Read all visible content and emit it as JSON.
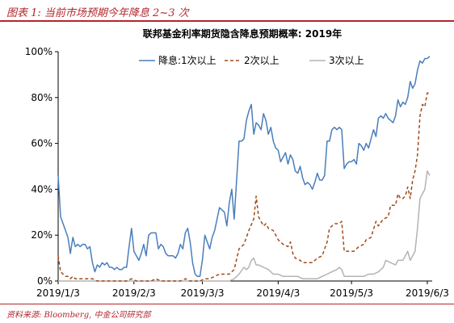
{
  "figure_title": "图表 1:  当前市场预期今年降息 2~3 次",
  "source": "资料来源: Bloomberg, 中金公司研究部",
  "chart_data": {
    "type": "line",
    "title": "联邦基金利率期货隐含降息预期概率: 2019年",
    "xlabel": "",
    "ylabel": "",
    "x_ticks": [
      "2019/1/3",
      "2019/2/3",
      "2019/3/3",
      "2019/4/3",
      "2019/5/3",
      "2019/6/3"
    ],
    "x_tick_days": [
      0,
      31,
      59,
      90,
      120,
      151
    ],
    "x_range_days": [
      0,
      153
    ],
    "y_ticks": [
      "0%",
      "20%",
      "40%",
      "60%",
      "80%",
      "100%"
    ],
    "ylim": [
      0,
      100
    ],
    "grid": false,
    "legend_position": "top",
    "series": [
      {
        "name": "降息:1次以上",
        "color": "#4a7ebb",
        "dash": "solid",
        "points": [
          [
            0,
            46
          ],
          [
            1,
            28
          ],
          [
            2,
            25
          ],
          [
            3,
            22
          ],
          [
            4,
            19
          ],
          [
            5,
            12
          ],
          [
            6,
            19
          ],
          [
            7,
            15
          ],
          [
            8,
            16
          ],
          [
            9,
            15
          ],
          [
            10,
            16
          ],
          [
            11,
            16
          ],
          [
            12,
            14
          ],
          [
            13,
            15
          ],
          [
            14,
            8
          ],
          [
            15,
            4
          ],
          [
            16,
            7
          ],
          [
            17,
            6
          ],
          [
            18,
            8
          ],
          [
            19,
            7
          ],
          [
            20,
            8
          ],
          [
            21,
            6
          ],
          [
            22,
            6
          ],
          [
            23,
            5
          ],
          [
            24,
            6
          ],
          [
            25,
            5
          ],
          [
            26,
            5
          ],
          [
            27,
            6
          ],
          [
            28,
            6
          ],
          [
            29,
            15
          ],
          [
            30,
            23
          ],
          [
            31,
            13
          ],
          [
            32,
            11
          ],
          [
            33,
            9
          ],
          [
            34,
            12
          ],
          [
            35,
            16
          ],
          [
            36,
            11
          ],
          [
            37,
            20
          ],
          [
            38,
            21
          ],
          [
            39,
            21
          ],
          [
            40,
            21
          ],
          [
            41,
            14
          ],
          [
            42,
            16
          ],
          [
            43,
            15
          ],
          [
            44,
            12
          ],
          [
            45,
            11
          ],
          [
            46,
            11
          ],
          [
            47,
            11
          ],
          [
            48,
            10
          ],
          [
            49,
            12
          ],
          [
            50,
            16
          ],
          [
            51,
            14
          ],
          [
            52,
            21
          ],
          [
            53,
            23
          ],
          [
            54,
            17
          ],
          [
            55,
            8
          ],
          [
            56,
            3
          ],
          [
            57,
            2
          ],
          [
            58,
            2
          ],
          [
            59,
            9
          ],
          [
            60,
            20
          ],
          [
            61,
            17
          ],
          [
            62,
            14
          ],
          [
            63,
            19
          ],
          [
            64,
            22
          ],
          [
            65,
            27
          ],
          [
            66,
            32
          ],
          [
            67,
            31
          ],
          [
            68,
            30
          ],
          [
            69,
            24
          ],
          [
            70,
            34
          ],
          [
            71,
            40
          ],
          [
            72,
            27
          ],
          [
            73,
            44
          ],
          [
            74,
            61
          ],
          [
            75,
            61
          ],
          [
            76,
            62
          ],
          [
            77,
            70
          ],
          [
            78,
            74
          ],
          [
            79,
            77
          ],
          [
            80,
            64
          ],
          [
            81,
            69
          ],
          [
            82,
            68
          ],
          [
            83,
            66
          ],
          [
            84,
            73
          ],
          [
            85,
            70
          ],
          [
            86,
            64
          ],
          [
            87,
            67
          ],
          [
            88,
            61
          ],
          [
            89,
            58
          ],
          [
            90,
            57
          ],
          [
            91,
            52
          ],
          [
            92,
            54
          ],
          [
            93,
            56
          ],
          [
            94,
            51
          ],
          [
            95,
            55
          ],
          [
            96,
            53
          ],
          [
            97,
            48
          ],
          [
            98,
            47
          ],
          [
            99,
            50
          ],
          [
            100,
            45
          ],
          [
            101,
            42
          ],
          [
            102,
            43
          ],
          [
            103,
            42
          ],
          [
            104,
            40
          ],
          [
            105,
            43
          ],
          [
            106,
            47
          ],
          [
            107,
            44
          ],
          [
            108,
            44
          ],
          [
            109,
            46
          ],
          [
            110,
            61
          ],
          [
            111,
            61
          ],
          [
            112,
            66
          ],
          [
            113,
            67
          ],
          [
            114,
            66
          ],
          [
            115,
            67
          ],
          [
            116,
            66
          ],
          [
            117,
            49
          ],
          [
            118,
            51
          ],
          [
            119,
            52
          ],
          [
            120,
            52
          ],
          [
            121,
            53
          ],
          [
            122,
            51
          ],
          [
            123,
            60
          ],
          [
            124,
            59
          ],
          [
            125,
            57
          ],
          [
            126,
            60
          ],
          [
            127,
            58
          ],
          [
            128,
            62
          ],
          [
            129,
            66
          ],
          [
            130,
            63
          ],
          [
            131,
            71
          ],
          [
            132,
            72
          ],
          [
            133,
            71
          ],
          [
            134,
            73
          ],
          [
            135,
            71
          ],
          [
            136,
            70
          ],
          [
            137,
            69
          ],
          [
            138,
            72
          ],
          [
            139,
            79
          ],
          [
            140,
            76
          ],
          [
            141,
            78
          ],
          [
            142,
            77
          ],
          [
            143,
            80
          ],
          [
            144,
            87
          ],
          [
            145,
            84
          ],
          [
            146,
            86
          ],
          [
            147,
            92
          ],
          [
            148,
            96
          ],
          [
            149,
            95
          ],
          [
            150,
            97
          ],
          [
            151,
            97
          ],
          [
            152,
            98
          ]
        ]
      },
      {
        "name": "2次以上",
        "color": "#a24a18",
        "dash": "4,3",
        "points": [
          [
            0,
            11
          ],
          [
            1,
            4
          ],
          [
            2,
            3
          ],
          [
            3,
            2
          ],
          [
            4,
            2
          ],
          [
            5,
            1
          ],
          [
            6,
            2
          ],
          [
            7,
            1
          ],
          [
            8,
            1
          ],
          [
            10,
            1
          ],
          [
            12,
            1
          ],
          [
            14,
            1
          ],
          [
            16,
            0
          ],
          [
            18,
            0
          ],
          [
            20,
            0
          ],
          [
            22,
            0
          ],
          [
            24,
            0
          ],
          [
            26,
            0
          ],
          [
            28,
            0
          ],
          [
            30,
            1
          ],
          [
            32,
            0
          ],
          [
            34,
            0
          ],
          [
            36,
            0
          ],
          [
            38,
            0
          ],
          [
            40,
            1
          ],
          [
            42,
            0
          ],
          [
            44,
            0
          ],
          [
            46,
            0
          ],
          [
            48,
            0
          ],
          [
            50,
            0
          ],
          [
            52,
            1
          ],
          [
            54,
            0
          ],
          [
            56,
            0
          ],
          [
            58,
            0
          ],
          [
            60,
            1
          ],
          [
            62,
            1
          ],
          [
            64,
            2
          ],
          [
            66,
            3
          ],
          [
            68,
            3
          ],
          [
            70,
            3
          ],
          [
            72,
            5
          ],
          [
            74,
            14
          ],
          [
            76,
            16
          ],
          [
            78,
            22
          ],
          [
            80,
            27
          ],
          [
            81,
            37
          ],
          [
            82,
            28
          ],
          [
            84,
            24
          ],
          [
            85,
            25
          ],
          [
            86,
            23
          ],
          [
            88,
            22
          ],
          [
            90,
            18
          ],
          [
            92,
            16
          ],
          [
            94,
            15
          ],
          [
            95,
            17
          ],
          [
            96,
            12
          ],
          [
            97,
            10
          ],
          [
            99,
            9
          ],
          [
            100,
            8
          ],
          [
            102,
            8
          ],
          [
            104,
            8
          ],
          [
            106,
            10
          ],
          [
            108,
            11
          ],
          [
            110,
            17
          ],
          [
            111,
            23
          ],
          [
            113,
            25
          ],
          [
            115,
            25
          ],
          [
            116,
            26
          ],
          [
            117,
            13
          ],
          [
            119,
            13
          ],
          [
            121,
            13
          ],
          [
            123,
            15
          ],
          [
            125,
            16
          ],
          [
            126,
            18
          ],
          [
            128,
            19
          ],
          [
            130,
            26
          ],
          [
            131,
            24
          ],
          [
            133,
            27
          ],
          [
            135,
            28
          ],
          [
            136,
            33
          ],
          [
            138,
            33
          ],
          [
            139,
            38
          ],
          [
            140,
            36
          ],
          [
            141,
            36
          ],
          [
            142,
            37
          ],
          [
            143,
            41
          ],
          [
            144,
            36
          ],
          [
            145,
            44
          ],
          [
            146,
            48
          ],
          [
            147,
            55
          ],
          [
            148,
            72
          ],
          [
            149,
            77
          ],
          [
            150,
            76
          ],
          [
            151,
            82
          ],
          [
            152,
            82
          ]
        ]
      },
      {
        "name": "3次以上",
        "color": "#b3b3b3",
        "dash": "solid",
        "points": [
          [
            0,
            0
          ],
          [
            5,
            0
          ],
          [
            10,
            0
          ],
          [
            20,
            0
          ],
          [
            30,
            0
          ],
          [
            40,
            0
          ],
          [
            50,
            0
          ],
          [
            60,
            0
          ],
          [
            65,
            0
          ],
          [
            70,
            0
          ],
          [
            72,
            1
          ],
          [
            74,
            3
          ],
          [
            76,
            6
          ],
          [
            77,
            5
          ],
          [
            78,
            6
          ],
          [
            79,
            9
          ],
          [
            80,
            10
          ],
          [
            81,
            7
          ],
          [
            82,
            7
          ],
          [
            84,
            6
          ],
          [
            86,
            5
          ],
          [
            88,
            3
          ],
          [
            90,
            3
          ],
          [
            92,
            2
          ],
          [
            94,
            2
          ],
          [
            96,
            2
          ],
          [
            98,
            2
          ],
          [
            100,
            1
          ],
          [
            102,
            1
          ],
          [
            104,
            1
          ],
          [
            106,
            1
          ],
          [
            108,
            2
          ],
          [
            110,
            3
          ],
          [
            112,
            4
          ],
          [
            114,
            5
          ],
          [
            115,
            6
          ],
          [
            116,
            5
          ],
          [
            117,
            2
          ],
          [
            119,
            2
          ],
          [
            121,
            2
          ],
          [
            123,
            2
          ],
          [
            125,
            2
          ],
          [
            127,
            3
          ],
          [
            129,
            3
          ],
          [
            131,
            4
          ],
          [
            133,
            6
          ],
          [
            134,
            9
          ],
          [
            136,
            8
          ],
          [
            138,
            7
          ],
          [
            139,
            9
          ],
          [
            141,
            9
          ],
          [
            142,
            11
          ],
          [
            143,
            13
          ],
          [
            144,
            9
          ],
          [
            145,
            11
          ],
          [
            146,
            13
          ],
          [
            147,
            23
          ],
          [
            148,
            36
          ],
          [
            149,
            38
          ],
          [
            150,
            40
          ],
          [
            151,
            48
          ],
          [
            152,
            46
          ]
        ]
      }
    ]
  }
}
